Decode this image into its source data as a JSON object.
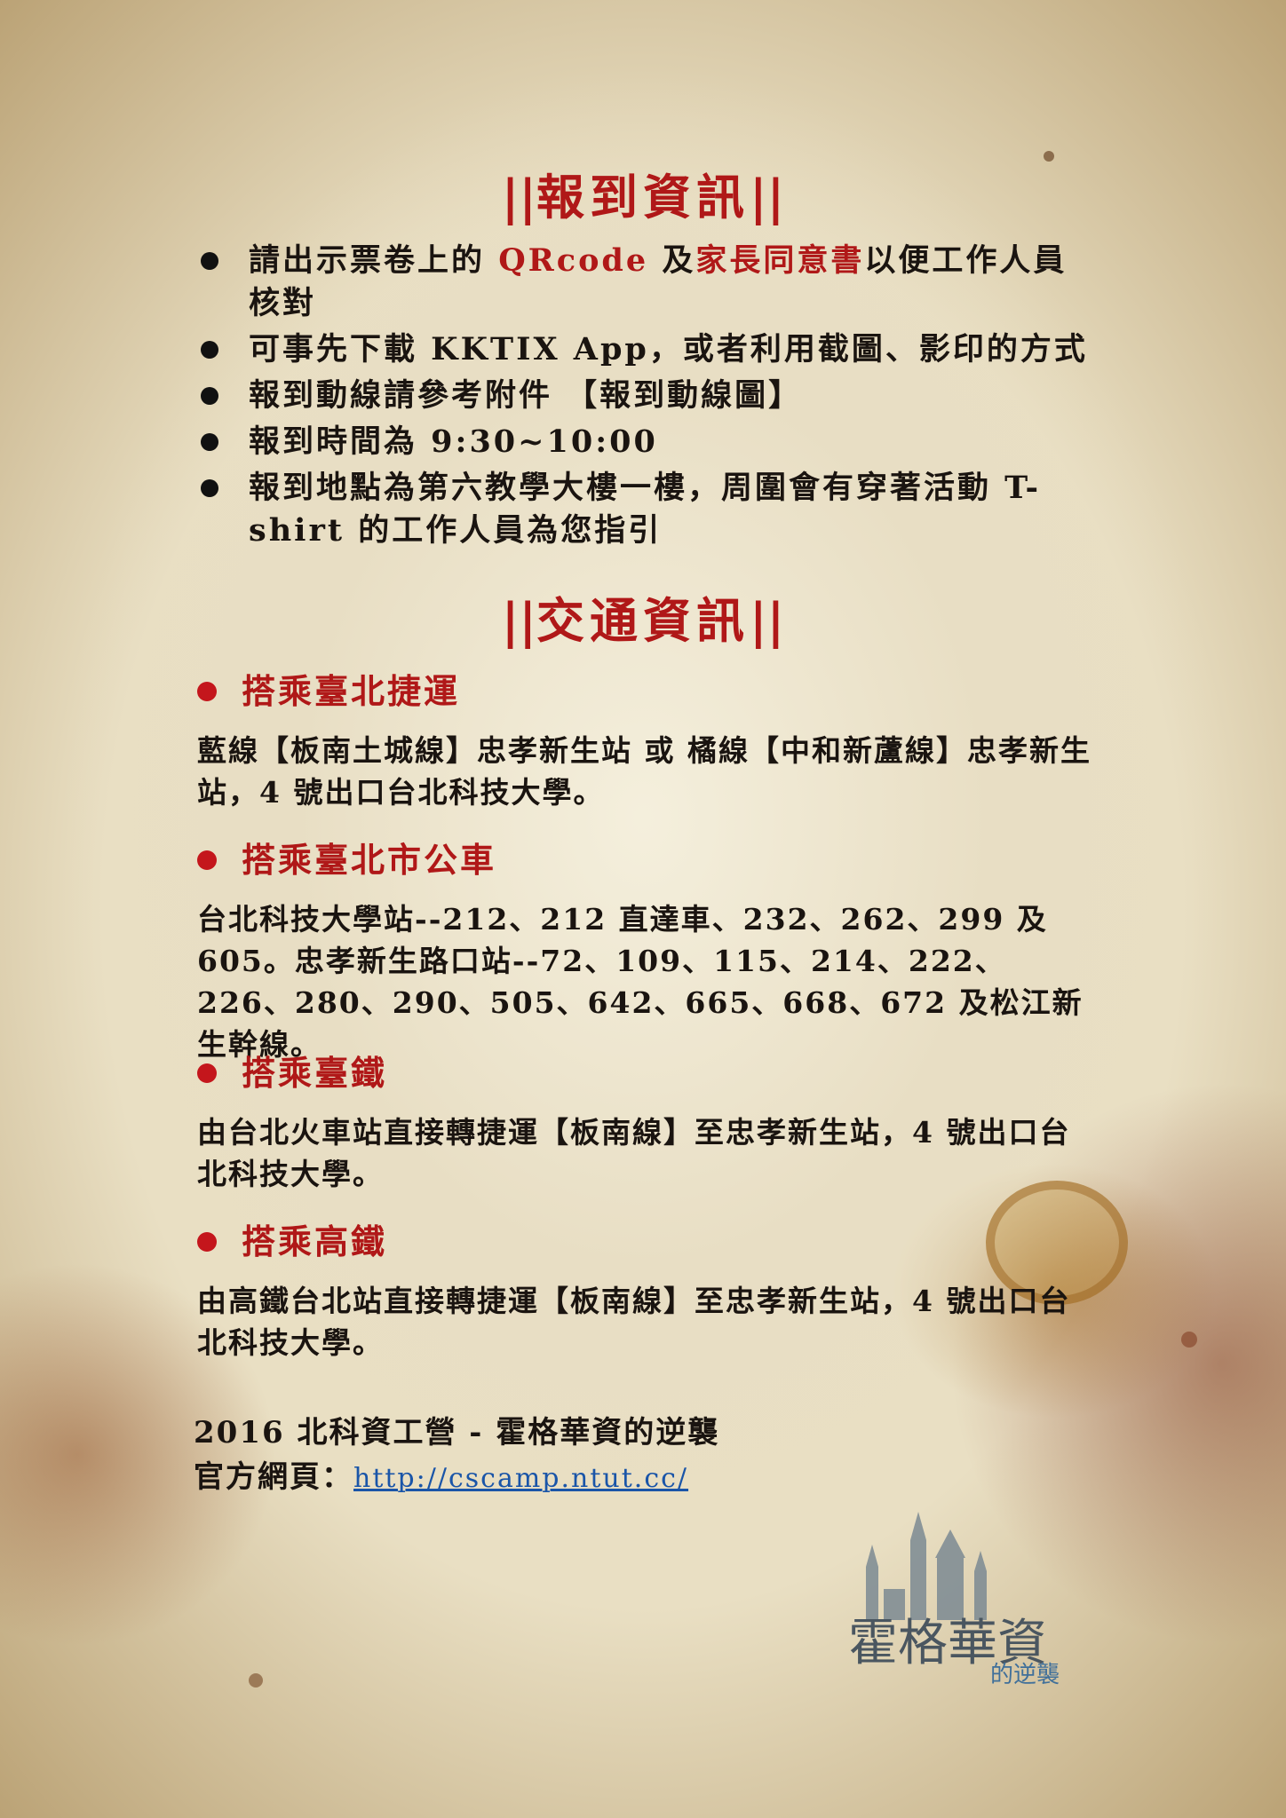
{
  "checkin": {
    "title": "報到資訊",
    "items": [
      {
        "a": "請出示票卷上的 ",
        "b": "QRcode",
        "c": " 及",
        "d": "家長同意書",
        "e": "以便工作人員核對"
      },
      {
        "text": "可事先下載 KKTIX App，或者利用截圖、影印的方式"
      },
      {
        "text": "報到動線請參考附件 【報到動線圖】"
      },
      {
        "text": "報到時間為 9:30~10:00"
      },
      {
        "text": "報到地點為第六教學大樓一樓，周圍會有穿著活動 T-shirt 的工作人員為您指引"
      }
    ]
  },
  "transport": {
    "title": "交通資訊",
    "sections": [
      {
        "heading": "搭乘臺北捷運",
        "body": "藍線【板南土城線】忠孝新生站 或 橘線【中和新蘆線】忠孝新生站，4 號出口台北科技大學。"
      },
      {
        "heading": "搭乘臺北市公車",
        "body": "台北科技大學站--212、212 直達車、232、262、299 及 605。忠孝新生路口站--72、109、115、214、222、226、280、290、505、642、665、668、672 及松江新生幹線。"
      },
      {
        "heading": "搭乘臺鐵",
        "body": "由台北火車站直接轉捷運【板南線】至忠孝新生站，4 號出口台北科技大學。"
      },
      {
        "heading": "搭乘高鐵",
        "body": "由高鐵台北站直接轉捷運【板南線】至忠孝新生站，4 號出口台北科技大學。"
      }
    ]
  },
  "footer": {
    "event": "2016 北科資工營 - 霍格華資的逆襲",
    "site_label": "官方網頁：",
    "site_url": "http://cscamp.ntut.cc/"
  },
  "logo": {
    "main": "霍格華資",
    "sub": "的逆襲"
  }
}
